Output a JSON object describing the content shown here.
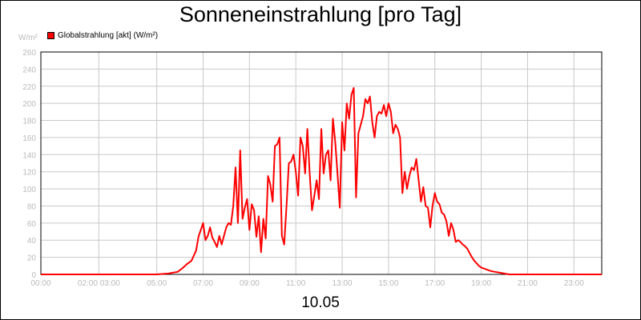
{
  "chart_data": {
    "type": "line",
    "title": "Sonneneinstrahlung [pro Tag]",
    "unit_label": "W/m²",
    "xlabel": "10.05",
    "legend": "Globalstrahlung [akt] (W/m²)",
    "series_color": "#ff0000",
    "grid": true,
    "xlim": [
      0,
      24.2
    ],
    "ylim": [
      0,
      260
    ],
    "y_ticks": [
      "0",
      "20",
      "40",
      "60",
      "80",
      "100",
      "120",
      "140",
      "160",
      "180",
      "200",
      "220",
      "240",
      "260"
    ],
    "x_ticks": [
      {
        "x": 0,
        "label": "00:00"
      },
      {
        "x": 2.5,
        "label": "02:00 03:00"
      },
      {
        "x": 5,
        "label": "05:00"
      },
      {
        "x": 7,
        "label": "07:00"
      },
      {
        "x": 9,
        "label": "09:00"
      },
      {
        "x": 11,
        "label": "11:00"
      },
      {
        "x": 13,
        "label": "13:00"
      },
      {
        "x": 15,
        "label": "15:00"
      },
      {
        "x": 17,
        "label": "17:00"
      },
      {
        "x": 19,
        "label": "19:00"
      },
      {
        "x": 21,
        "label": "21:00"
      },
      {
        "x": 23,
        "label": "23:00"
      }
    ],
    "series": [
      {
        "name": "Globalstrahlung [akt] (W/m²)",
        "x": [
          0,
          5.0,
          5.5,
          5.9,
          6.1,
          6.3,
          6.5,
          6.7,
          6.8,
          6.9,
          7.0,
          7.1,
          7.2,
          7.3,
          7.4,
          7.5,
          7.6,
          7.7,
          7.8,
          7.9,
          8.0,
          8.1,
          8.2,
          8.3,
          8.4,
          8.5,
          8.6,
          8.7,
          8.8,
          8.9,
          9.0,
          9.1,
          9.2,
          9.3,
          9.4,
          9.5,
          9.6,
          9.7,
          9.8,
          9.9,
          10.0,
          10.1,
          10.2,
          10.3,
          10.4,
          10.5,
          10.6,
          10.7,
          10.8,
          10.9,
          11.0,
          11.1,
          11.2,
          11.3,
          11.4,
          11.5,
          11.6,
          11.7,
          11.8,
          11.9,
          12.0,
          12.1,
          12.2,
          12.3,
          12.4,
          12.5,
          12.6,
          12.7,
          12.8,
          12.9,
          13.0,
          13.1,
          13.2,
          13.3,
          13.4,
          13.5,
          13.6,
          13.7,
          13.8,
          13.9,
          14.0,
          14.1,
          14.2,
          14.3,
          14.4,
          14.5,
          14.6,
          14.7,
          14.8,
          14.9,
          15.0,
          15.1,
          15.2,
          15.3,
          15.4,
          15.5,
          15.6,
          15.7,
          15.8,
          15.9,
          16.0,
          16.1,
          16.2,
          16.3,
          16.4,
          16.5,
          16.6,
          16.7,
          16.8,
          16.9,
          17.0,
          17.1,
          17.2,
          17.3,
          17.4,
          17.5,
          17.6,
          17.7,
          17.8,
          17.9,
          18.0,
          18.1,
          18.2,
          18.3,
          18.4,
          18.5,
          18.6,
          18.7,
          18.8,
          18.9,
          19.0,
          19.2,
          19.4,
          19.6,
          19.8,
          20.0,
          20.2,
          20.4,
          20.6,
          20.8,
          21.0,
          21.2,
          24.2
        ],
        "values": [
          0,
          0,
          1,
          3,
          7,
          12,
          16,
          28,
          44,
          52,
          60,
          40,
          45,
          55,
          43,
          38,
          32,
          45,
          35,
          45,
          55,
          60,
          58,
          80,
          125,
          60,
          145,
          65,
          78,
          88,
          52,
          82,
          75,
          44,
          68,
          26,
          65,
          42,
          115,
          105,
          85,
          150,
          152,
          160,
          45,
          35,
          80,
          130,
          132,
          140,
          120,
          92,
          160,
          150,
          118,
          170,
          118,
          75,
          92,
          110,
          88,
          170,
          118,
          140,
          145,
          110,
          182,
          155,
          118,
          78,
          178,
          145,
          200,
          182,
          210,
          218,
          90,
          165,
          175,
          185,
          205,
          200,
          208,
          178,
          160,
          185,
          190,
          188,
          198,
          185,
          200,
          190,
          165,
          175,
          170,
          160,
          95,
          120,
          100,
          115,
          125,
          122,
          135,
          110,
          85,
          102,
          80,
          78,
          55,
          80,
          95,
          85,
          82,
          72,
          70,
          62,
          45,
          60,
          52,
          38,
          40,
          38,
          35,
          33,
          30,
          25,
          20,
          16,
          13,
          10,
          8,
          6,
          4,
          3,
          2,
          1,
          0,
          0,
          0,
          0,
          0,
          0,
          0
        ]
      }
    ]
  }
}
